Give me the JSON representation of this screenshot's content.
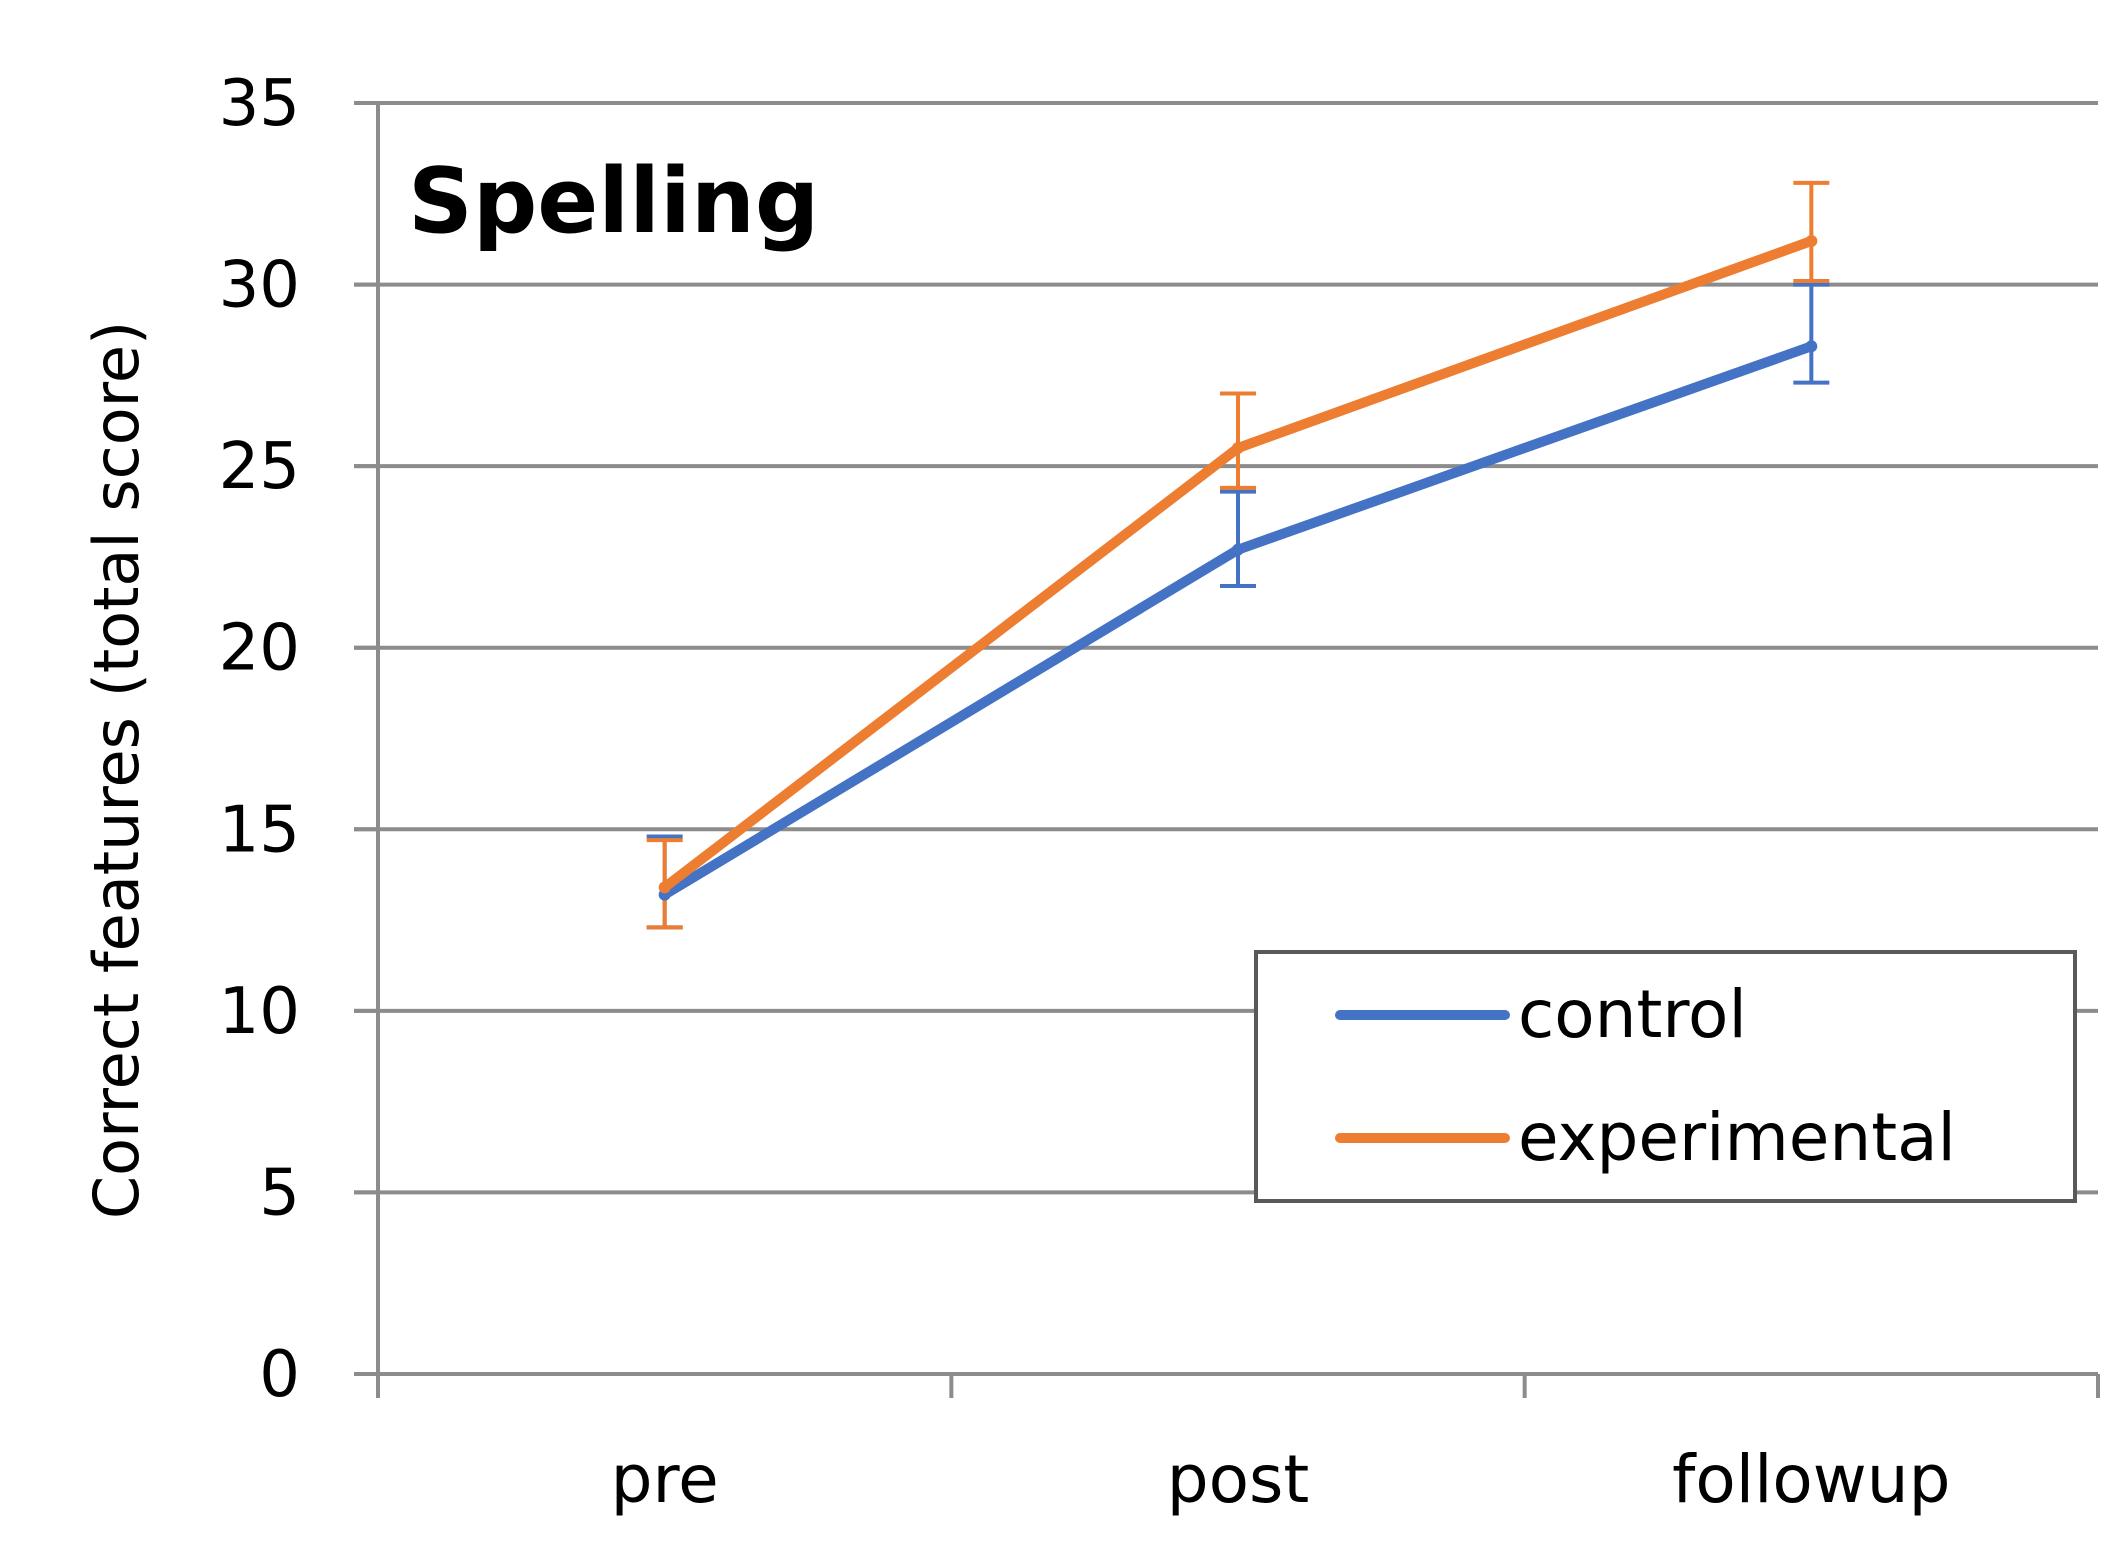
{
  "chart_data": {
    "type": "line",
    "title": "Spelling",
    "xlabel": "",
    "ylabel": "Correct features (total score)",
    "categories": [
      "pre",
      "post",
      "followup"
    ],
    "ylim": [
      0,
      35
    ],
    "yticks": [
      0,
      5,
      10,
      15,
      20,
      25,
      30,
      35
    ],
    "grid": true,
    "legend_position": "bottom-right",
    "series": [
      {
        "name": "control",
        "color": "#4472C4",
        "values": [
          13.2,
          22.7,
          28.3
        ],
        "error_low": [
          12.3,
          21.7,
          27.3
        ],
        "error_high": [
          14.8,
          24.3,
          30.0
        ]
      },
      {
        "name": "experimental",
        "color": "#ED7D31",
        "values": [
          13.4,
          25.5,
          31.2
        ],
        "error_low": [
          12.3,
          24.4,
          30.1
        ],
        "error_high": [
          14.7,
          27.0,
          32.8
        ]
      }
    ]
  }
}
